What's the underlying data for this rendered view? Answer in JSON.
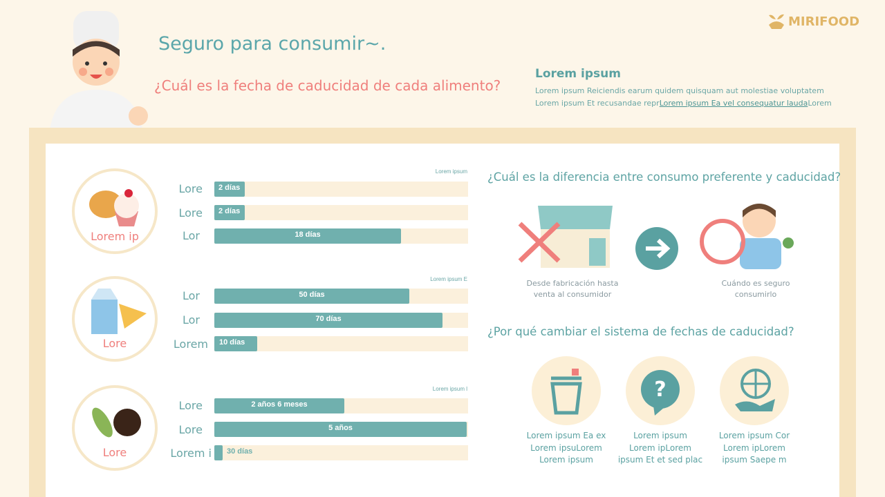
{
  "brand": "MIRIFOOD",
  "header": {
    "title": "Seguro para consumir~.",
    "question": "¿Cuál es la fecha de caducidad de cada alimento?",
    "info_title": "Lorem ipsum",
    "info_line1": "Lorem ipsum Reiciendis earum quidem quisquam aut molestiae voluptatem",
    "info_line2_start": "Lorem ipsum Et recusandae repr",
    "info_line2_link": "Lorem ipsum Ea vel consequatur lauda",
    "info_line2_end": "Lorem"
  },
  "groups": [
    {
      "label": "Lorem ip",
      "note": "Lorem ipsum",
      "rows": [
        {
          "label": "Lore",
          "value": "2 días"
        },
        {
          "label": "Lore",
          "value": "2 días"
        },
        {
          "label": "Lor",
          "value": "18 días"
        }
      ]
    },
    {
      "label": "Lore",
      "note": "Lorem ipsum E",
      "rows": [
        {
          "label": "Lor",
          "value": "50 días"
        },
        {
          "label": "Lor",
          "value": "70 días"
        },
        {
          "label": "Lorem",
          "value": "10 días"
        }
      ]
    },
    {
      "label": "Lore",
      "note": "Lorem ipsum l",
      "rows": [
        {
          "label": "Lore",
          "value": "2 años 6 meses"
        },
        {
          "label": "Lore",
          "value": "5 años"
        },
        {
          "label": "Lorem i",
          "value": "30 días"
        }
      ]
    }
  ],
  "difference": {
    "title": "¿Cuál es la diferencia entre consumo preferente y caducidad?",
    "steps": [
      {
        "lines": [
          "Desde fabricación hasta",
          "venta al consumidor"
        ]
      },
      {
        "lines": [
          "Cuándo es seguro",
          "consumirlo"
        ]
      }
    ]
  },
  "why": {
    "title": "¿Por qué cambiar el sistema de fechas de caducidad?",
    "items": [
      {
        "lines": [
          "Lorem ipsum Ea ex",
          "Lorem ipsuLorem",
          "Lorem ipsum"
        ]
      },
      {
        "lines": [
          "Lorem ipsum",
          "Lorem ipLorem",
          "ipsum Et et sed plac"
        ]
      },
      {
        "lines": [
          "Lorem ipsum Cor",
          "Lorem ipLorem",
          "ipsum Saepe m"
        ]
      }
    ]
  }
}
